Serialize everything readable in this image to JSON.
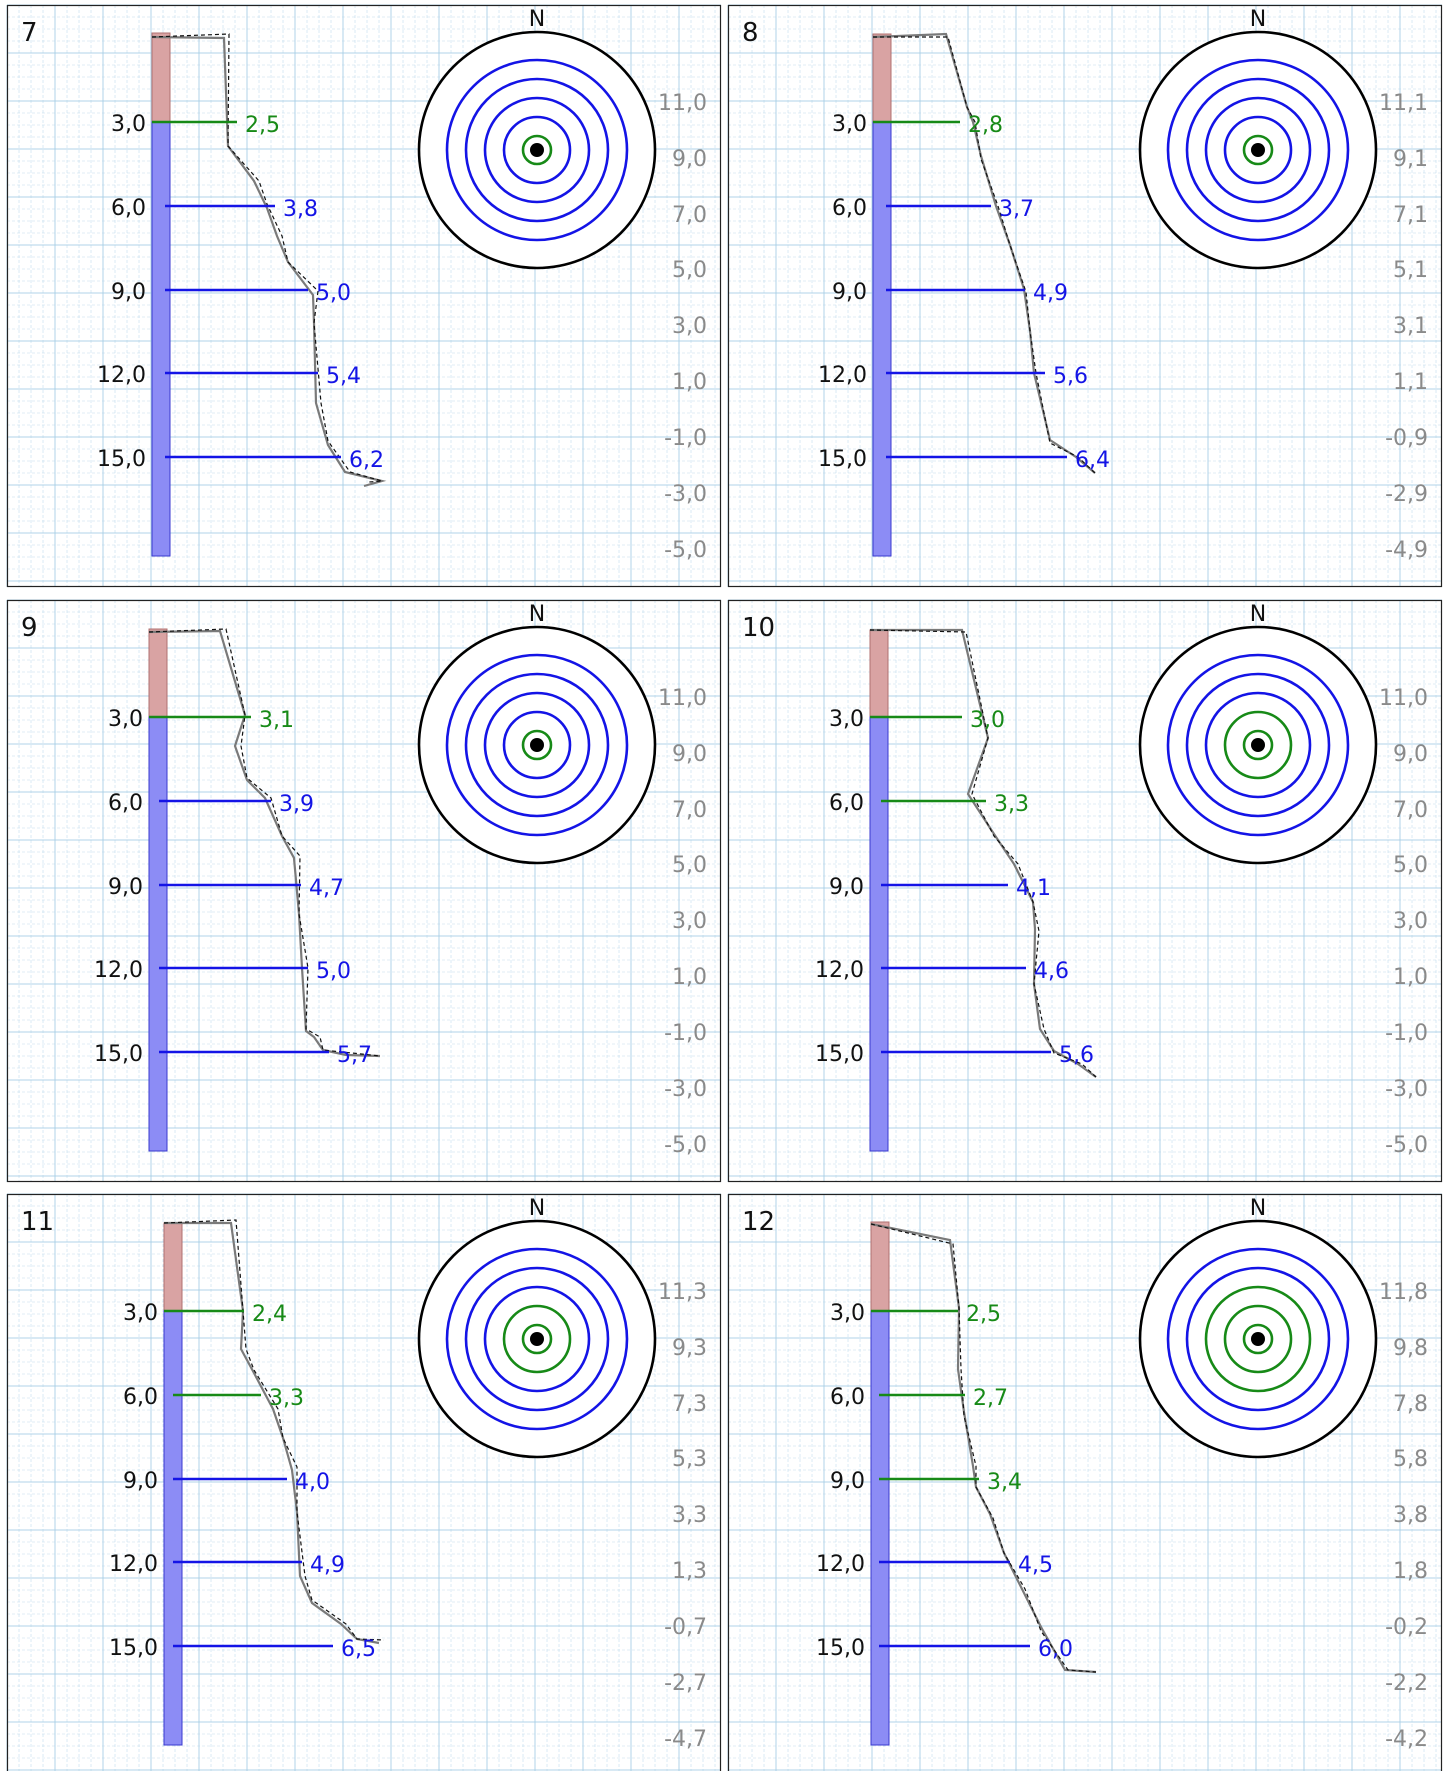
{
  "colors": {
    "grid": "#a9cfe6",
    "frame": "#222222",
    "elevation_label": "#8a8a8a",
    "green": "#178a17",
    "blue": "#1414e6",
    "bar_blue": "#8c8cf5",
    "bar_red": "#d9a3a3",
    "profile_solid": "#7a7a7a",
    "profile_dashed": "#111111"
  },
  "compass_label": "N",
  "panels": [
    {
      "number": "7",
      "depth_labels": [
        "3,0",
        "6,0",
        "9,0",
        "12,0",
        "15,0"
      ],
      "levels": [
        {
          "value": "2,5",
          "color": "green"
        },
        {
          "value": "3,8",
          "color": "blue"
        },
        {
          "value": "5,0",
          "color": "blue"
        },
        {
          "value": "5,4",
          "color": "blue"
        },
        {
          "value": "6,2",
          "color": "blue"
        }
      ],
      "elevations": [
        "11,0",
        "9,0",
        "7,0",
        "5,0",
        "3,0",
        "1,0",
        "-1,0",
        "-3,0",
        "-5,0"
      ],
      "rings": [
        "green",
        "blue",
        "blue",
        "blue",
        "blue",
        "black"
      ]
    },
    {
      "number": "8",
      "depth_labels": [
        "3,0",
        "6,0",
        "9,0",
        "12,0",
        "15,0"
      ],
      "levels": [
        {
          "value": "2,8",
          "color": "green"
        },
        {
          "value": "3,7",
          "color": "blue"
        },
        {
          "value": "4,9",
          "color": "blue"
        },
        {
          "value": "5,6",
          "color": "blue"
        },
        {
          "value": "6,4",
          "color": "blue"
        }
      ],
      "elevations": [
        "11,1",
        "9,1",
        "7,1",
        "5,1",
        "3,1",
        "1,1",
        "-0,9",
        "-2,9",
        "-4,9"
      ],
      "rings": [
        "green",
        "blue",
        "blue",
        "blue",
        "blue",
        "black"
      ]
    },
    {
      "number": "9",
      "depth_labels": [
        "3,0",
        "6,0",
        "9,0",
        "12,0",
        "15,0"
      ],
      "levels": [
        {
          "value": "3,1",
          "color": "green"
        },
        {
          "value": "3,9",
          "color": "blue"
        },
        {
          "value": "4,7",
          "color": "blue"
        },
        {
          "value": "5,0",
          "color": "blue"
        },
        {
          "value": "5,7",
          "color": "blue"
        }
      ],
      "elevations": [
        "11,0",
        "9,0",
        "7,0",
        "5,0",
        "3,0",
        "1,0",
        "-1,0",
        "-3,0",
        "-5,0"
      ],
      "rings": [
        "green",
        "blue",
        "blue",
        "blue",
        "blue",
        "black"
      ]
    },
    {
      "number": "10",
      "depth_labels": [
        "3,0",
        "6,0",
        "9,0",
        "12,0",
        "15,0"
      ],
      "levels": [
        {
          "value": "3,0",
          "color": "green"
        },
        {
          "value": "3,3",
          "color": "green"
        },
        {
          "value": "4,1",
          "color": "blue"
        },
        {
          "value": "4,6",
          "color": "blue"
        },
        {
          "value": "5,6",
          "color": "blue"
        }
      ],
      "elevations": [
        "11,0",
        "9,0",
        "7,0",
        "5,0",
        "3,0",
        "1,0",
        "-1,0",
        "-3,0",
        "-5,0"
      ],
      "rings": [
        "green",
        "green",
        "blue",
        "blue",
        "blue",
        "black"
      ]
    },
    {
      "number": "11",
      "depth_labels": [
        "3,0",
        "6,0",
        "9,0",
        "12,0",
        "15,0"
      ],
      "levels": [
        {
          "value": "2,4",
          "color": "green"
        },
        {
          "value": "3,3",
          "color": "green"
        },
        {
          "value": "4,0",
          "color": "blue"
        },
        {
          "value": "4,9",
          "color": "blue"
        },
        {
          "value": "6,5",
          "color": "blue"
        }
      ],
      "elevations": [
        "11,3",
        "9,3",
        "7,3",
        "5,3",
        "3,3",
        "1,3",
        "-0,7",
        "-2,7",
        "-4,7"
      ],
      "rings": [
        "green",
        "green",
        "blue",
        "blue",
        "blue",
        "black"
      ]
    },
    {
      "number": "12",
      "depth_labels": [
        "3,0",
        "6,0",
        "9,0",
        "12,0",
        "15,0"
      ],
      "levels": [
        {
          "value": "2,5",
          "color": "green"
        },
        {
          "value": "2,7",
          "color": "green"
        },
        {
          "value": "3,4",
          "color": "green"
        },
        {
          "value": "4,5",
          "color": "blue"
        },
        {
          "value": "6,0",
          "color": "blue"
        }
      ],
      "elevations": [
        "11,8",
        "9,8",
        "7,8",
        "5,8",
        "3,8",
        "1,8",
        "-0,2",
        "-2,2",
        "-4,2"
      ],
      "rings": [
        "green",
        "green",
        "green",
        "blue",
        "blue",
        "black"
      ]
    }
  ]
}
